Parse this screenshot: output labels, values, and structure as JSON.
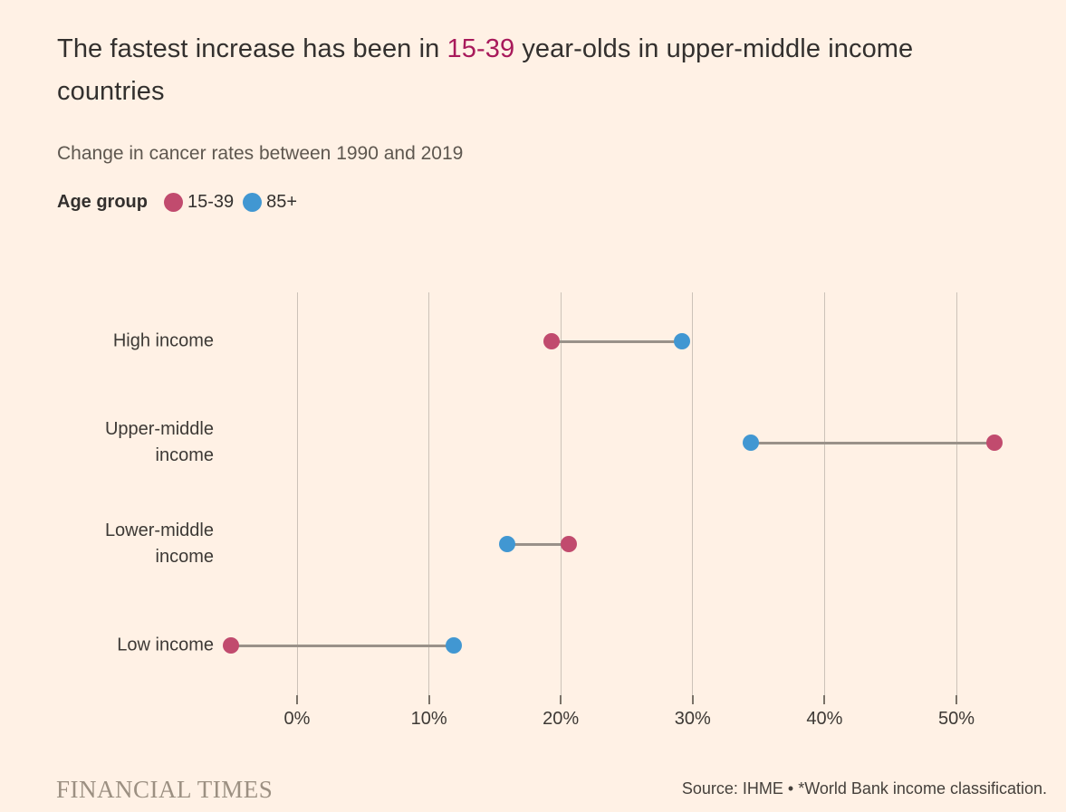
{
  "header": {
    "title_prefix": "The fastest increase has been in ",
    "title_highlight": "15-39",
    "title_suffix": " year-olds in upper-middle income countries",
    "subtitle": "Change in cancer rates between 1990 and 2019"
  },
  "legend": {
    "label": "Age group",
    "items": [
      {
        "label": "15-39",
        "color": "#C14B6E"
      },
      {
        "label": "85+",
        "color": "#4197D2"
      }
    ]
  },
  "chart_data": {
    "type": "scatter",
    "subtype": "dumbbell",
    "title": "Change in cancer rates between 1990 and 2019",
    "categories": [
      "High income",
      "Upper-middle income",
      "Lower-middle income",
      "Low income"
    ],
    "series": [
      {
        "name": "15-39",
        "color": "#C14B6E",
        "values": [
          19.3,
          52.9,
          20.6,
          -5.0
        ]
      },
      {
        "name": "85+",
        "color": "#4197D2",
        "values": [
          29.2,
          34.4,
          15.9,
          11.9
        ]
      }
    ],
    "x_ticks": [
      0,
      10,
      20,
      30,
      40,
      50
    ],
    "x_tick_labels": [
      "0%",
      "10%",
      "20%",
      "30%",
      "40%",
      "50%"
    ],
    "xlim": [
      -6,
      54
    ],
    "xlabel": "",
    "ylabel": "",
    "grid": "vertical-only",
    "legend_position": "top-left",
    "connector_color": "#999189",
    "gridline_color": "#CCC2B8"
  },
  "footer": {
    "brand": "FINANCIAL TIMES",
    "source": "Source: IHME • *World Bank income classification."
  },
  "colors": {
    "background": "#FFF1E5",
    "text": "#33302E",
    "title_highlight": "#A81A5B",
    "subtitle": "#5E574F",
    "pink": "#C14B6E",
    "blue": "#4197D2"
  }
}
